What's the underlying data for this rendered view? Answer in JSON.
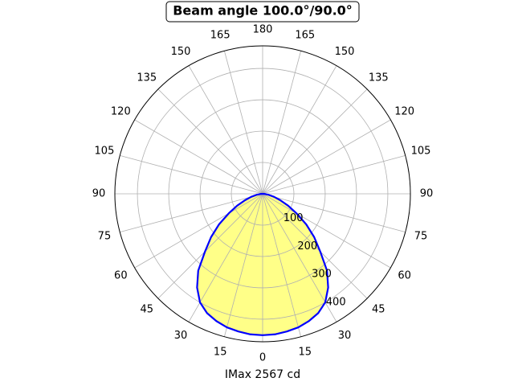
{
  "chart_data": {
    "type": "polar",
    "title": "Beam angle 100.0°/90.0°",
    "xlabel": "IMax 2567 cd",
    "theta": [
      -90,
      -85,
      -80,
      -75,
      -70,
      -65,
      -60,
      -55,
      -50,
      -45,
      -40,
      -35,
      -30,
      -25,
      -20,
      -15,
      -10,
      -5,
      0,
      5,
      10,
      15,
      20,
      25,
      30,
      35,
      40,
      45,
      50,
      55,
      60,
      65,
      70,
      75,
      80,
      85,
      90
    ],
    "values": [
      0,
      8,
      20,
      38,
      60,
      90,
      125,
      170,
      215,
      260,
      320,
      365,
      400,
      420,
      432,
      441,
      446,
      450,
      451,
      450,
      446,
      441,
      432,
      420,
      400,
      365,
      320,
      260,
      215,
      170,
      125,
      90,
      60,
      38,
      20,
      8,
      0
    ],
    "color": "#0000ff",
    "fill": "#ffff88",
    "rlim": [
      0,
      472
    ],
    "rticks": [
      100,
      200,
      300,
      400
    ],
    "thetaticks": [
      0,
      15,
      30,
      45,
      60,
      75,
      90,
      105,
      120,
      135,
      150,
      165,
      180
    ],
    "grid": true
  }
}
